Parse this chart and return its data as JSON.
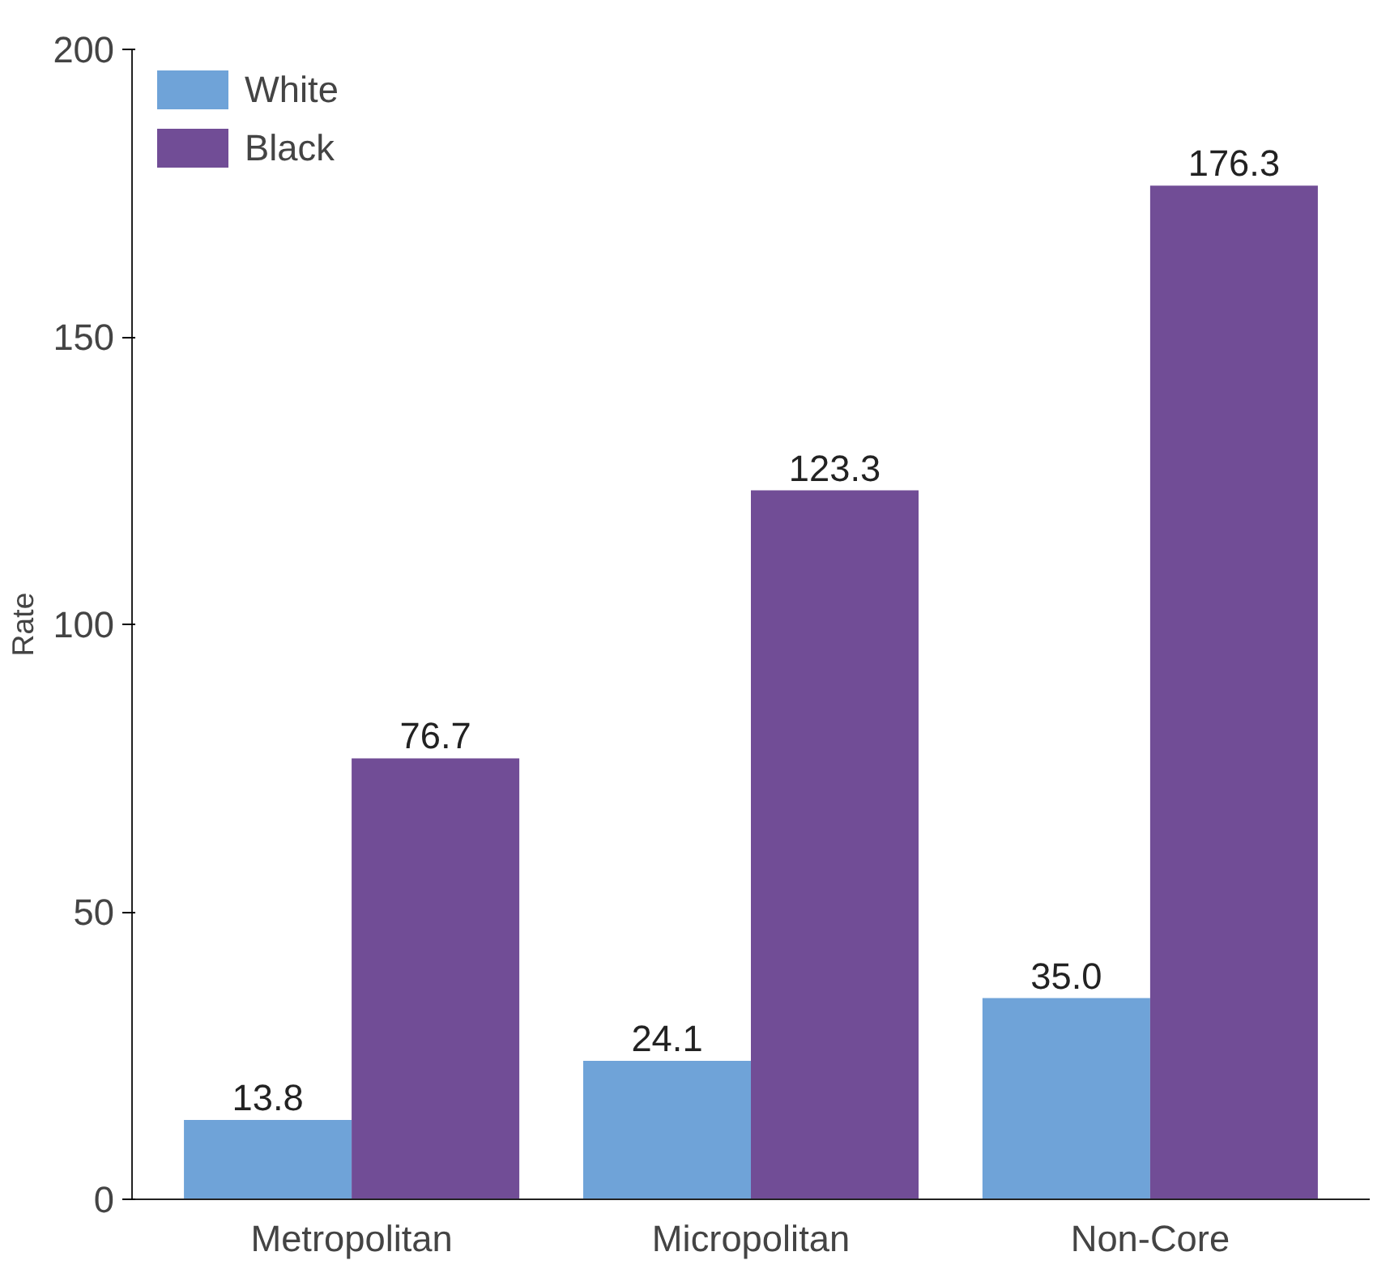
{
  "chart_data": {
    "type": "bar",
    "ylabel": "Rate",
    "categories": [
      "Metropolitan",
      "Micropolitan",
      "Non-Core"
    ],
    "series": [
      {
        "name": "White",
        "color": "#6fa3d8",
        "values": [
          13.8,
          24.1,
          35.0
        ],
        "value_labels": [
          "13.8",
          "24.1",
          "35.0"
        ]
      },
      {
        "name": "Black",
        "color": "#714d96",
        "values": [
          76.7,
          123.3,
          176.3
        ],
        "value_labels": [
          "76.7",
          "123.3",
          "176.3"
        ]
      }
    ],
    "ylim": [
      0,
      200
    ],
    "yticks": [
      0,
      50,
      100,
      150,
      200
    ],
    "grid": false,
    "legend": "top left"
  }
}
